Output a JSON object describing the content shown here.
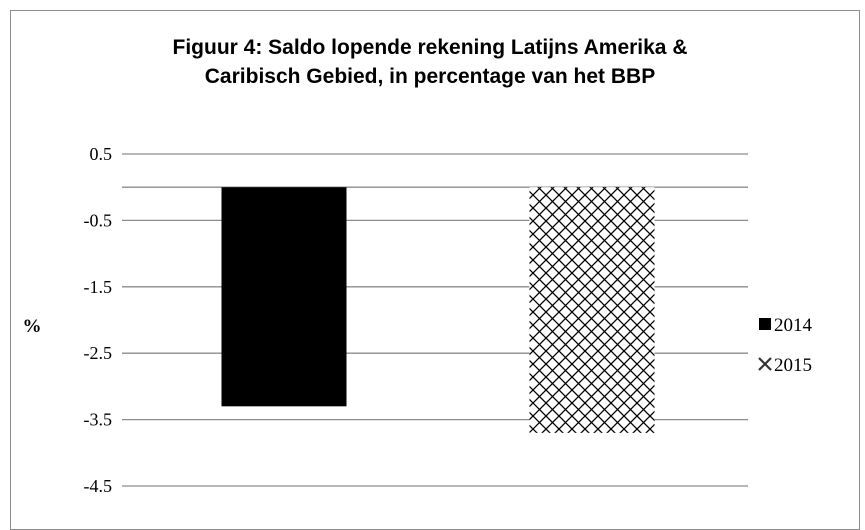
{
  "chart_data": {
    "type": "bar",
    "title": "Figuur 4: Saldo lopende rekening Latijns Amerika &\nCaribisch Gebied, in percentage van het BBP",
    "xlabel": "",
    "ylabel": "%",
    "ylim": [
      -4.5,
      0.5
    ],
    "yticks": [
      0.5,
      -0.5,
      -1.5,
      -2.5,
      -3.5,
      -4.5
    ],
    "ytick_labels": [
      "0.5",
      "-0.5",
      "-1.5",
      "-2.5",
      "-3.5",
      "-4.5"
    ],
    "grid": true,
    "legend_position": "right",
    "categories": [
      ""
    ],
    "series": [
      {
        "name": "2014",
        "values": [
          -3.3
        ],
        "fill": "solid",
        "color": "#000000"
      },
      {
        "name": "2015",
        "values": [
          -3.7
        ],
        "fill": "crosshatch",
        "color": "#000000"
      }
    ]
  }
}
